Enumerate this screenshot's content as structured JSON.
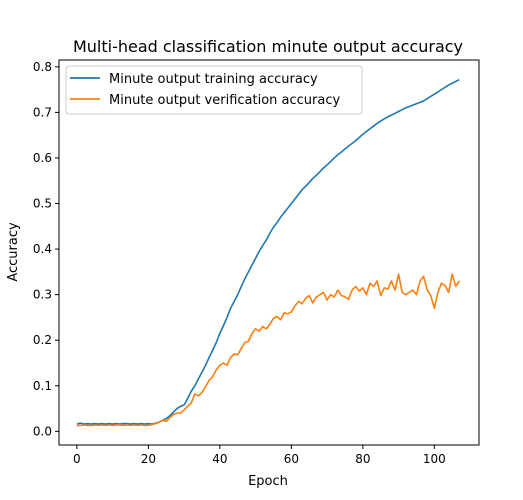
{
  "chart_data": {
    "type": "line",
    "title": "Multi-head classification minute output accuracy",
    "xlabel": "Epoch",
    "ylabel": "Accuracy",
    "xlim": [
      -5,
      112.5
    ],
    "ylim": [
      -0.03,
      0.815
    ],
    "xticks": [
      0,
      20,
      40,
      60,
      80,
      100
    ],
    "yticks": [
      0.0,
      0.1,
      0.2,
      0.3,
      0.4,
      0.5,
      0.6,
      0.7,
      0.8
    ],
    "legend_position": "upper-left",
    "grid": false,
    "series": [
      {
        "name": "Minute output training accuracy",
        "color": "#1f77b4",
        "x": [
          0,
          1,
          2,
          3,
          4,
          5,
          6,
          7,
          8,
          9,
          10,
          11,
          12,
          13,
          14,
          15,
          16,
          17,
          18,
          19,
          20,
          21,
          22,
          23,
          24,
          25,
          26,
          27,
          28,
          29,
          30,
          31,
          32,
          33,
          34,
          35,
          36,
          37,
          38,
          39,
          40,
          41,
          42,
          43,
          44,
          45,
          46,
          47,
          48,
          49,
          50,
          51,
          52,
          53,
          54,
          55,
          56,
          57,
          58,
          59,
          60,
          61,
          62,
          63,
          64,
          65,
          66,
          67,
          68,
          69,
          70,
          71,
          72,
          73,
          74,
          75,
          76,
          77,
          78,
          79,
          80,
          81,
          82,
          83,
          84,
          85,
          86,
          87,
          88,
          89,
          90,
          91,
          92,
          93,
          94,
          95,
          96,
          97,
          98,
          99,
          100,
          101,
          102,
          103,
          104,
          105,
          106,
          107
        ],
        "y": [
          0.016,
          0.018,
          0.016,
          0.017,
          0.016,
          0.017,
          0.016,
          0.017,
          0.016,
          0.017,
          0.016,
          0.017,
          0.016,
          0.017,
          0.017,
          0.016,
          0.017,
          0.016,
          0.017,
          0.016,
          0.017,
          0.016,
          0.018,
          0.02,
          0.024,
          0.028,
          0.034,
          0.042,
          0.05,
          0.055,
          0.058,
          0.072,
          0.088,
          0.1,
          0.115,
          0.13,
          0.145,
          0.162,
          0.178,
          0.195,
          0.215,
          0.232,
          0.25,
          0.27,
          0.285,
          0.3,
          0.318,
          0.335,
          0.35,
          0.365,
          0.38,
          0.395,
          0.408,
          0.42,
          0.435,
          0.448,
          0.458,
          0.47,
          0.48,
          0.49,
          0.5,
          0.51,
          0.52,
          0.53,
          0.538,
          0.546,
          0.555,
          0.562,
          0.57,
          0.578,
          0.585,
          0.592,
          0.6,
          0.607,
          0.613,
          0.62,
          0.626,
          0.632,
          0.638,
          0.645,
          0.652,
          0.658,
          0.664,
          0.67,
          0.676,
          0.681,
          0.686,
          0.69,
          0.694,
          0.698,
          0.702,
          0.706,
          0.71,
          0.713,
          0.716,
          0.719,
          0.722,
          0.725,
          0.73,
          0.735,
          0.74,
          0.745,
          0.75,
          0.755,
          0.76,
          0.764,
          0.768,
          0.772
        ]
      },
      {
        "name": "Minute output verification accuracy",
        "color": "#ff7f0e",
        "x": [
          0,
          1,
          2,
          3,
          4,
          5,
          6,
          7,
          8,
          9,
          10,
          11,
          12,
          13,
          14,
          15,
          16,
          17,
          18,
          19,
          20,
          21,
          22,
          23,
          24,
          25,
          26,
          27,
          28,
          29,
          30,
          31,
          32,
          33,
          34,
          35,
          36,
          37,
          38,
          39,
          40,
          41,
          42,
          43,
          44,
          45,
          46,
          47,
          48,
          49,
          50,
          51,
          52,
          53,
          54,
          55,
          56,
          57,
          58,
          59,
          60,
          61,
          62,
          63,
          64,
          65,
          66,
          67,
          68,
          69,
          70,
          71,
          72,
          73,
          74,
          75,
          76,
          77,
          78,
          79,
          80,
          81,
          82,
          83,
          84,
          85,
          86,
          87,
          88,
          89,
          90,
          91,
          92,
          93,
          94,
          95,
          96,
          97,
          98,
          99,
          100,
          101,
          102,
          103,
          104,
          105,
          106,
          107
        ],
        "y": [
          0.013,
          0.013,
          0.014,
          0.013,
          0.013,
          0.014,
          0.013,
          0.014,
          0.013,
          0.014,
          0.013,
          0.014,
          0.014,
          0.013,
          0.014,
          0.013,
          0.014,
          0.013,
          0.014,
          0.013,
          0.013,
          0.015,
          0.017,
          0.02,
          0.024,
          0.022,
          0.03,
          0.037,
          0.04,
          0.04,
          0.047,
          0.055,
          0.062,
          0.082,
          0.078,
          0.085,
          0.098,
          0.112,
          0.12,
          0.135,
          0.145,
          0.15,
          0.145,
          0.162,
          0.17,
          0.168,
          0.182,
          0.195,
          0.198,
          0.215,
          0.225,
          0.22,
          0.23,
          0.225,
          0.235,
          0.248,
          0.252,
          0.245,
          0.26,
          0.258,
          0.262,
          0.275,
          0.285,
          0.28,
          0.292,
          0.298,
          0.282,
          0.295,
          0.3,
          0.305,
          0.288,
          0.3,
          0.295,
          0.31,
          0.298,
          0.295,
          0.29,
          0.31,
          0.318,
          0.308,
          0.315,
          0.3,
          0.325,
          0.318,
          0.33,
          0.298,
          0.315,
          0.312,
          0.33,
          0.31,
          0.345,
          0.305,
          0.3,
          0.305,
          0.31,
          0.3,
          0.33,
          0.34,
          0.31,
          0.298,
          0.27,
          0.305,
          0.325,
          0.32,
          0.305,
          0.345,
          0.318,
          0.33
        ]
      }
    ]
  }
}
